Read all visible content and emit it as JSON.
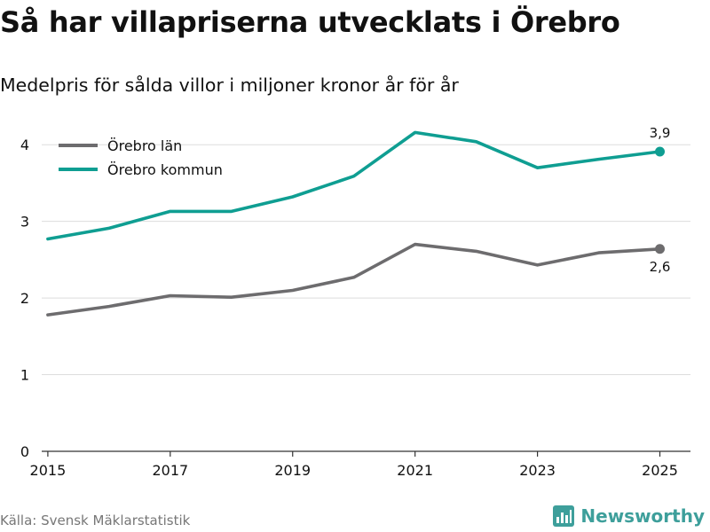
{
  "header": {
    "title": "Så har villapriserna utvecklats i Örebro",
    "subtitle": "Medelpris för sålda villor i miljoner kronor år för år"
  },
  "footer": {
    "source": "Källa: Svensk Mäklarstatistik",
    "brand": "Newsworthy",
    "brand_icon": "bar-chart-logo-icon"
  },
  "colors": {
    "lan": "#6d6c6e",
    "kommun": "#0f9e92",
    "grid": "#dddddd",
    "axis": "#333333",
    "brand": "#3e9f9b"
  },
  "chart_data": {
    "type": "line",
    "x": [
      2015,
      2016,
      2017,
      2018,
      2019,
      2020,
      2021,
      2022,
      2023,
      2024,
      2025
    ],
    "series": [
      {
        "name": "Örebro län",
        "color": "#6d6c6e",
        "values": [
          1.78,
          1.89,
          2.03,
          2.01,
          2.1,
          2.27,
          2.7,
          2.61,
          2.43,
          2.59,
          2.64
        ],
        "end_label": "2,6",
        "end_label_pos": "below"
      },
      {
        "name": "Örebro kommun",
        "color": "#0f9e92",
        "values": [
          2.77,
          2.91,
          3.13,
          3.13,
          3.32,
          3.59,
          4.16,
          4.04,
          3.7,
          3.81,
          3.91
        ],
        "end_label": "3,9",
        "end_label_pos": "above"
      }
    ],
    "xticks": [
      2015,
      2017,
      2019,
      2021,
      2023,
      2025
    ],
    "xtick_labels": [
      "2015",
      "2017",
      "2019",
      "2021",
      "2023",
      "2025"
    ],
    "yticks": [
      0,
      1,
      2,
      3,
      4
    ],
    "ytick_labels": [
      "0",
      "1",
      "2",
      "3",
      "4"
    ],
    "xlim": [
      2014.9,
      2025.5
    ],
    "ylim": [
      0,
      4.5
    ],
    "xlabel": "",
    "ylabel": "",
    "grid": true,
    "legend_position": "top-left"
  }
}
